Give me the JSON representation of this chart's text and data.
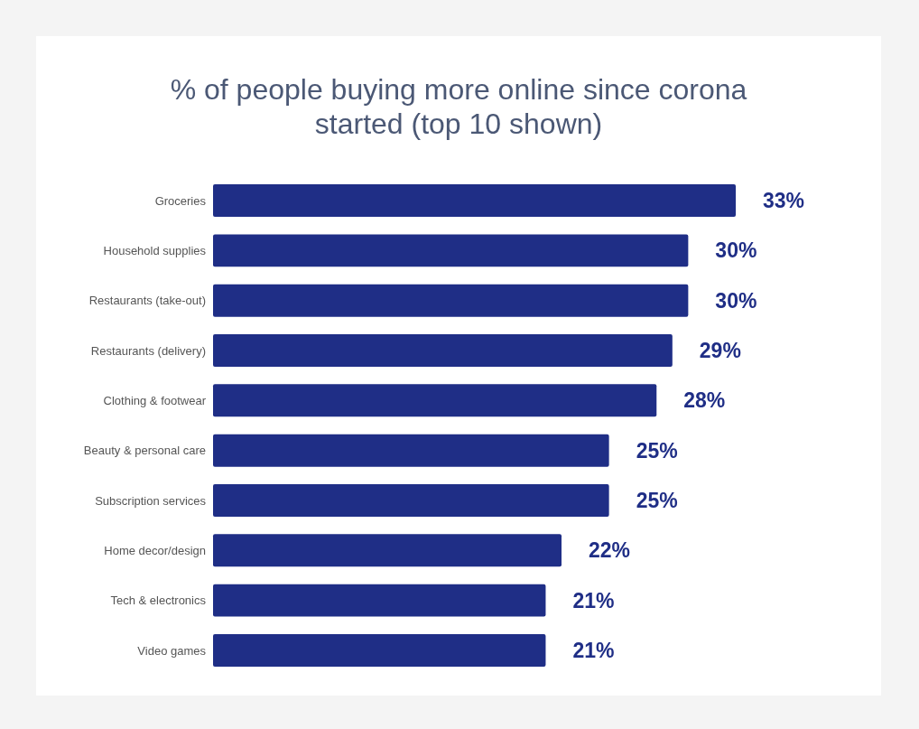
{
  "chart_data": {
    "type": "bar",
    "orientation": "horizontal",
    "title": "% of people buying more online since corona started (top 10 shown)",
    "categories": [
      "Groceries",
      "Household supplies",
      "Restaurants (take-out)",
      "Restaurants (delivery)",
      "Clothing & footwear",
      "Beauty & personal care",
      "Subscription services",
      "Home decor/design",
      "Tech & electronics",
      "Video games"
    ],
    "values": [
      33,
      30,
      30,
      29,
      28,
      25,
      25,
      22,
      21,
      21
    ],
    "value_labels": [
      "33%",
      "30%",
      "30%",
      "29%",
      "28%",
      "25%",
      "25%",
      "22%",
      "21%",
      "21%"
    ],
    "color": "#1f2e86"
  }
}
